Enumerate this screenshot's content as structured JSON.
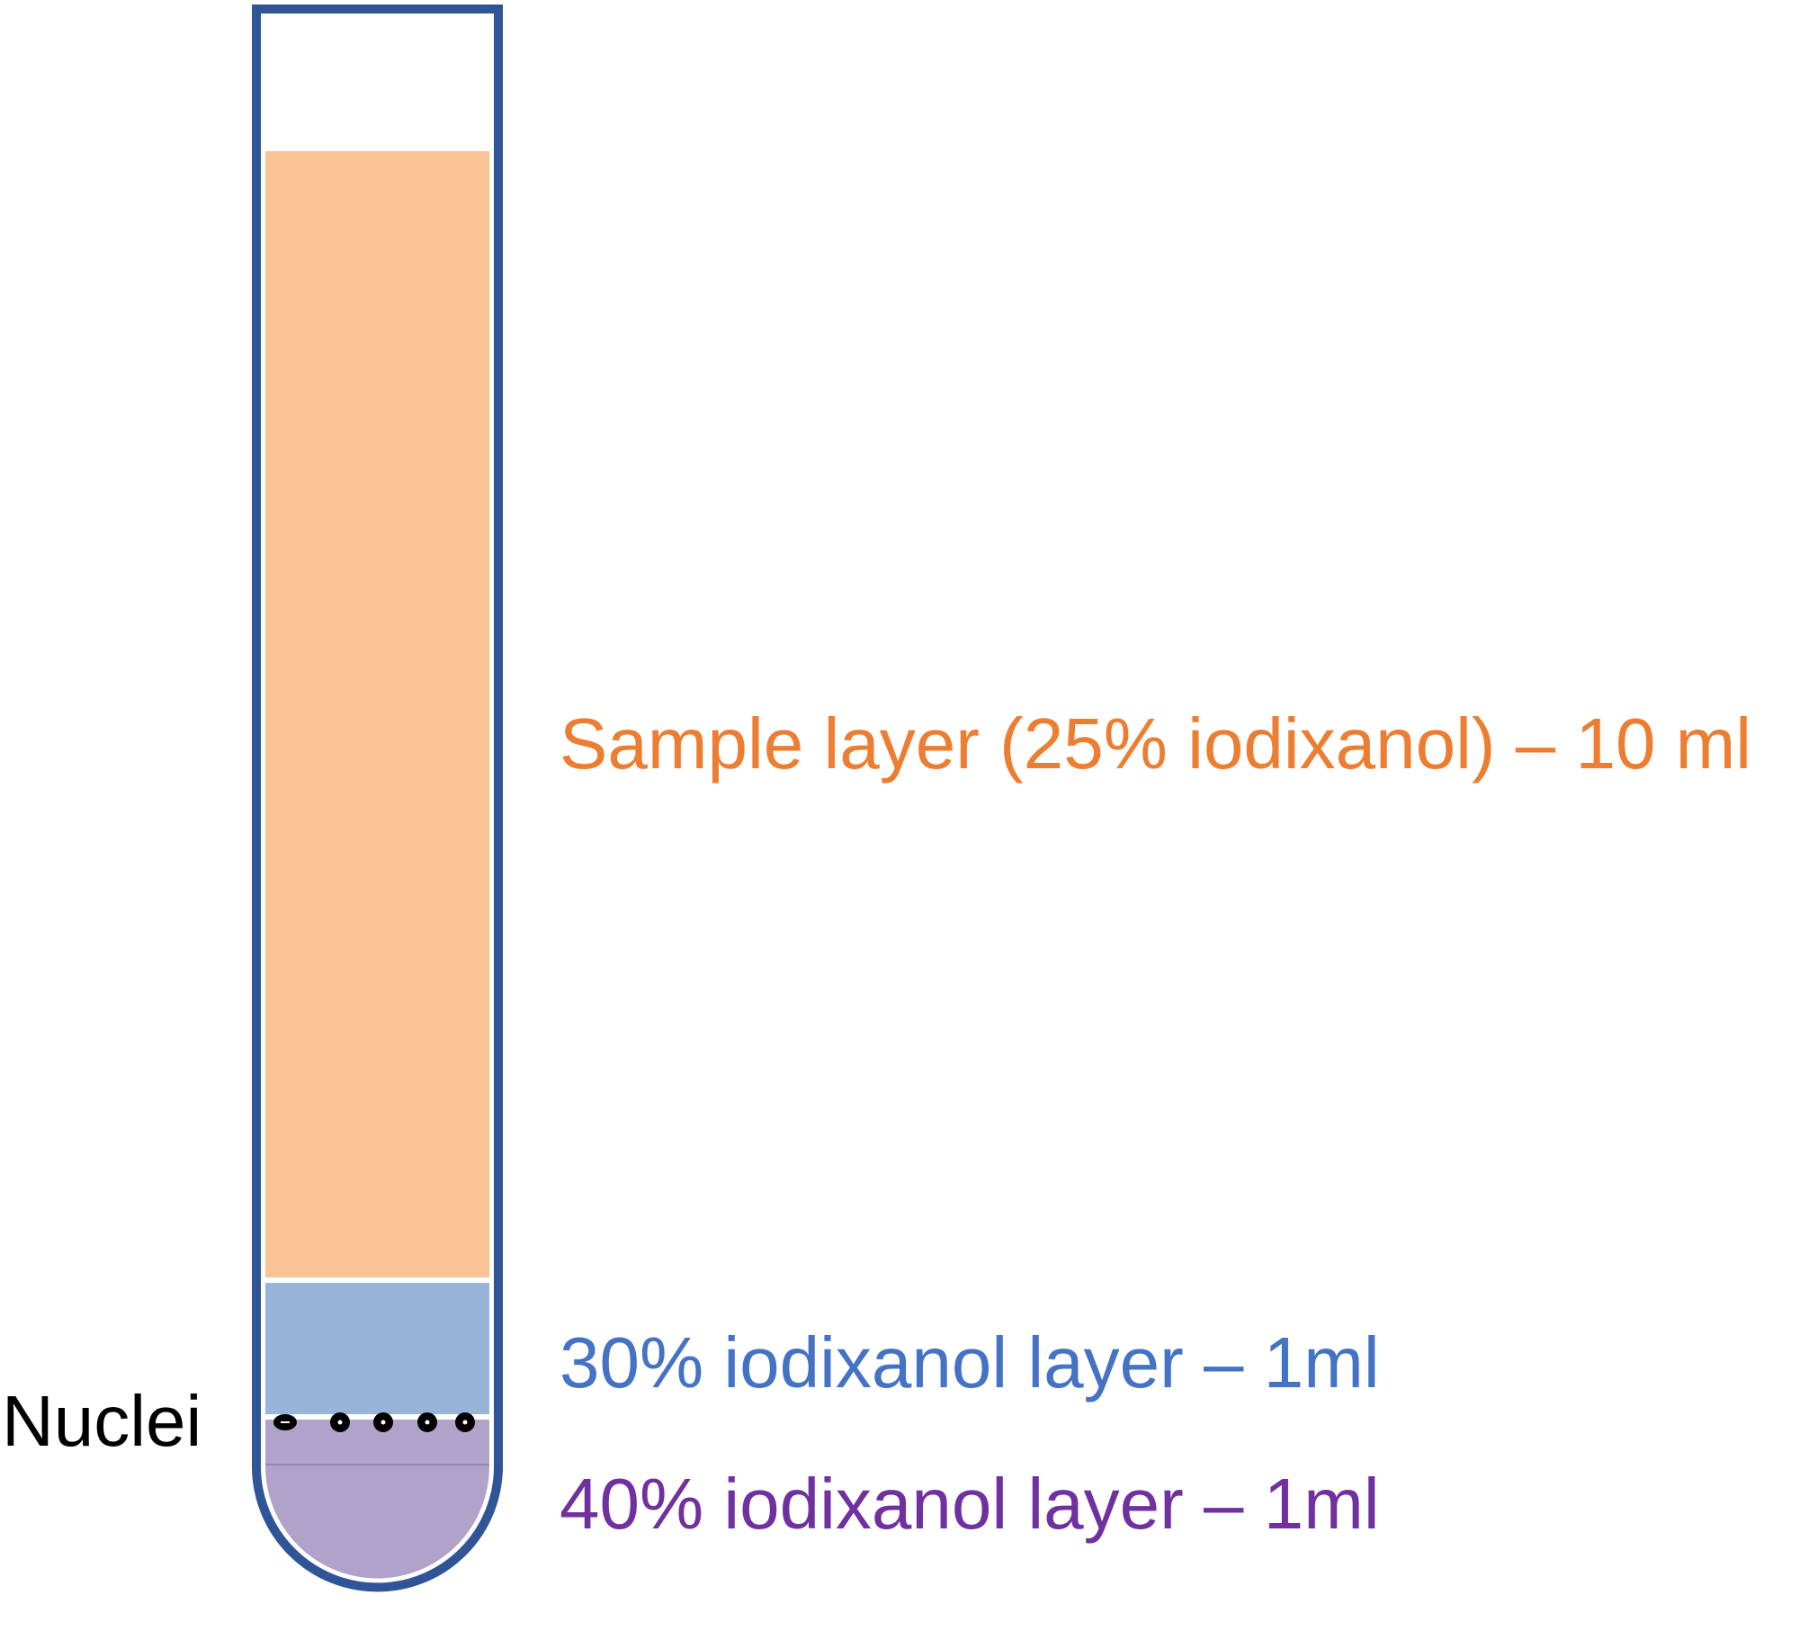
{
  "tube": {
    "outline_color": "#2f5597",
    "layers": [
      {
        "id": "sample",
        "label": "Sample layer (25% iodixanol) – 10 ml",
        "color": "#f9c393",
        "text_color": "#ed7d31"
      },
      {
        "id": "layer30",
        "label": "30% iodixanol layer – 1ml",
        "color": "#98b4d8",
        "text_color": "#4472c4"
      },
      {
        "id": "layer40",
        "label": "40% iodixanol layer – 1ml",
        "color": "#b1a2c9",
        "text_color": "#7030a0"
      }
    ]
  },
  "nuclei": {
    "label": "Nuclei",
    "text_color": "#000000",
    "dot_color": "#000000"
  }
}
